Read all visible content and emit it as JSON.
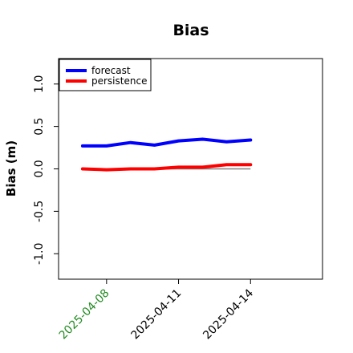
{
  "chart_data": {
    "type": "line",
    "title": "Bias",
    "xlabel": "",
    "ylabel": "Bias (m)",
    "ylim": [
      -1.3,
      1.3
    ],
    "yticks": [
      -1.0,
      -0.5,
      0.0,
      0.5,
      1.0
    ],
    "ytick_labels": [
      "-1.0",
      "-0.5",
      "0.0",
      "0.5",
      "1.0"
    ],
    "xlim": [
      "2025-04-06",
      "2025-04-17"
    ],
    "x": [
      "2025-04-07",
      "2025-04-08",
      "2025-04-09",
      "2025-04-10",
      "2025-04-11",
      "2025-04-12",
      "2025-04-13",
      "2025-04-14"
    ],
    "xticks": [
      "2025-04-08",
      "2025-04-11",
      "2025-04-14"
    ],
    "xtick_labels": [
      "2025-04-08",
      "2025-04-11",
      "2025-04-14"
    ],
    "xtick_colors": [
      "#228b22",
      "#000000",
      "#000000"
    ],
    "series": [
      {
        "name": "forecast",
        "color": "#0000ff",
        "values": [
          0.27,
          0.27,
          0.31,
          0.28,
          0.33,
          0.35,
          0.32,
          0.34
        ]
      },
      {
        "name": "persistence",
        "color": "#ff0000",
        "values": [
          0.0,
          -0.01,
          0.0,
          0.0,
          0.02,
          0.02,
          0.05,
          0.05
        ]
      }
    ],
    "reference_line": {
      "y": 0.0,
      "color": "#808080"
    },
    "legend_position": "top-left",
    "grid": false
  }
}
